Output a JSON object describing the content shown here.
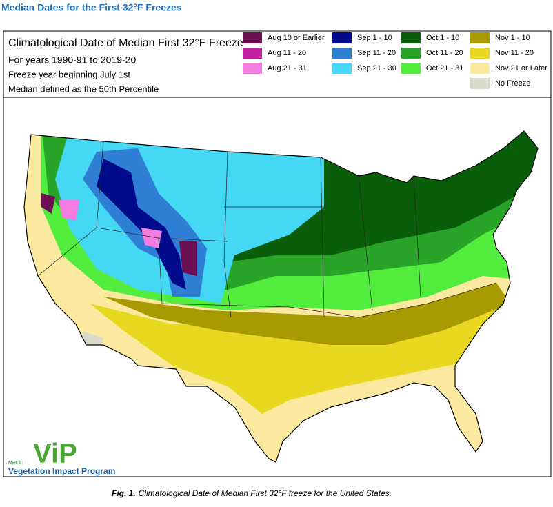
{
  "header": {
    "title": "Median Dates for the First 32°F Freezes"
  },
  "map": {
    "title": "Climatological Date of Median First 32°F Freeze",
    "subtitle": "For years 1990-91 to 2019-20",
    "notes": [
      "Freeze year beginning July 1st",
      "Median defined as the 50th Percentile"
    ],
    "legend": [
      {
        "label": "Aug 10 or Earlier",
        "color": "#6b0f52"
      },
      {
        "label": "Aug 11 - 20",
        "color": "#c21fa0"
      },
      {
        "label": "Aug 21 - 31",
        "color": "#f27ce0"
      },
      {
        "label": "Sep 1 - 10",
        "color": "#000a8a"
      },
      {
        "label": "Sep 11 - 20",
        "color": "#2f7fd4"
      },
      {
        "label": "Sep 21 - 30",
        "color": "#45d8f5"
      },
      {
        "label": "Oct 1 - 10",
        "color": "#0a5e0a"
      },
      {
        "label": "Oct 11 - 20",
        "color": "#28a428"
      },
      {
        "label": "Oct 21 - 31",
        "color": "#52ec3c"
      },
      {
        "label": "Nov 1 - 10",
        "color": "#a89a00"
      },
      {
        "label": "Nov 11 - 20",
        "color": "#e8d820"
      },
      {
        "label": "Nov 21 or Later",
        "color": "#fce9a0"
      },
      {
        "label": "No Freeze",
        "color": "#d9d9cc"
      }
    ]
  },
  "logo": {
    "org": "MRCC",
    "mark": "ViP",
    "name": "Vegetation Impact Program"
  },
  "caption": {
    "label": "Fig. 1.",
    "text": "Climatological Date of Median First 32°F freeze for the United States."
  }
}
